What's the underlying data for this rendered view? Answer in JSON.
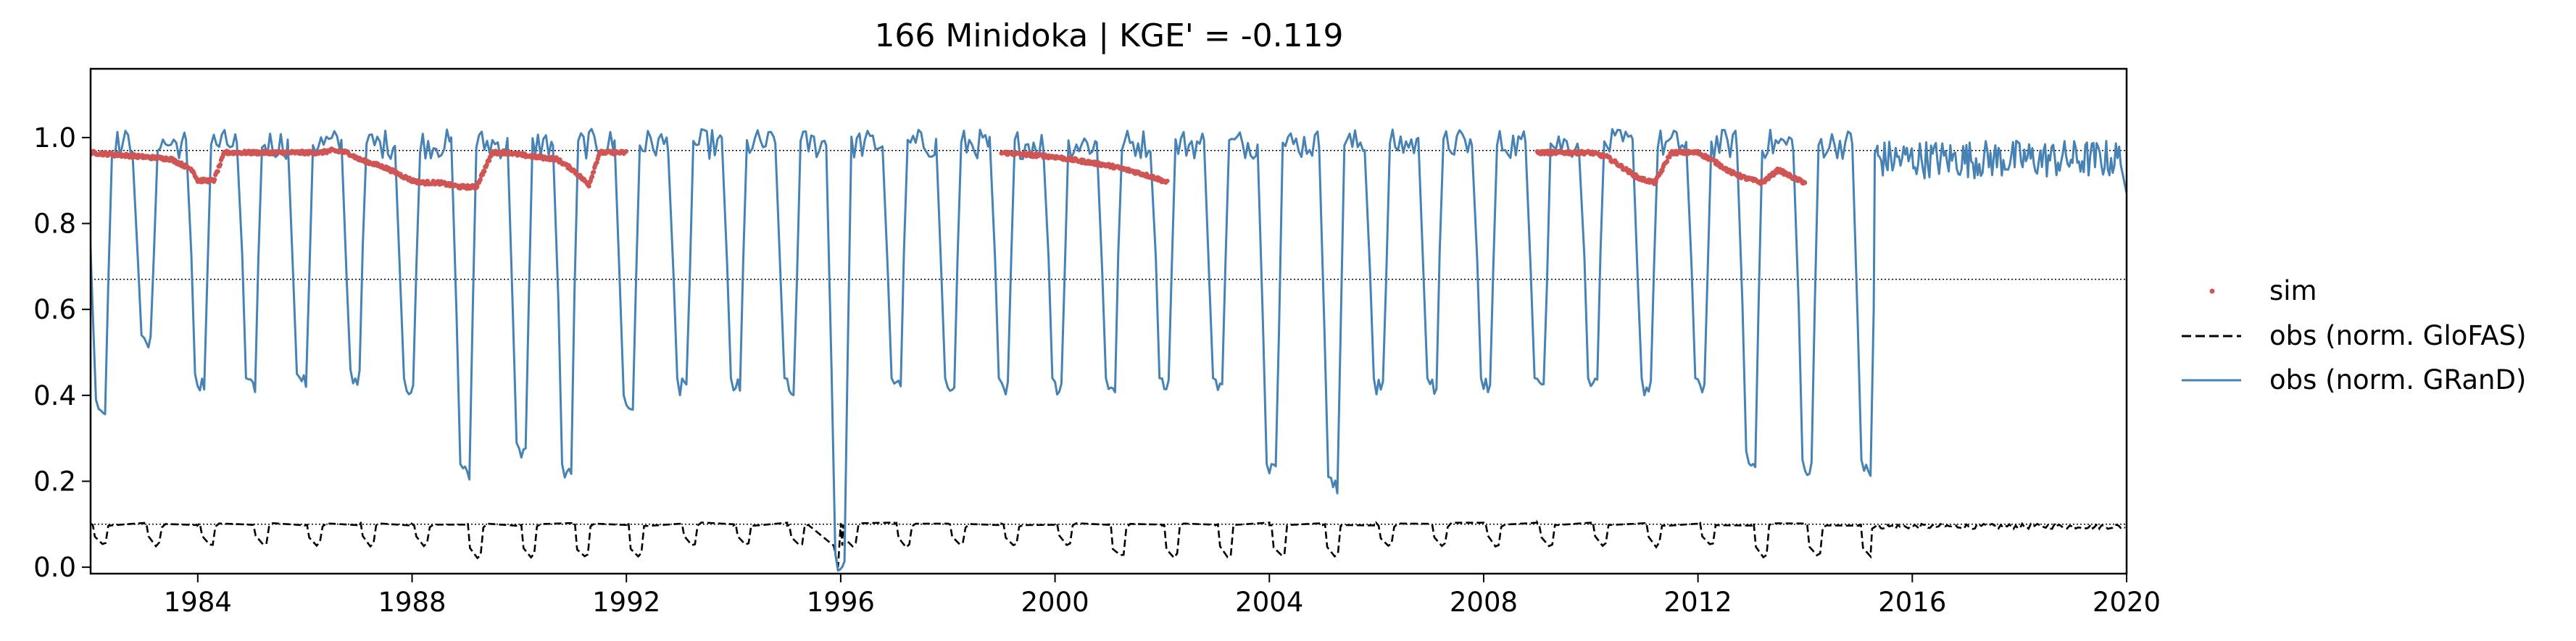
{
  "chart_data": {
    "type": "line",
    "title": "166  Minidoka | KGE' = -0.119",
    "xlabel": "",
    "ylabel": "",
    "xlim": [
      1982.0,
      2020.0
    ],
    "ylim": [
      -0.015,
      1.16
    ],
    "xticks": [
      1984,
      1988,
      1992,
      1996,
      2000,
      2004,
      2008,
      2012,
      2016,
      2020
    ],
    "yticks": [
      0.0,
      0.2,
      0.4,
      0.6,
      0.8,
      1.0
    ],
    "ytick_labels": [
      "0.0",
      "0.2",
      "0.4",
      "0.6",
      "0.8",
      "1.0"
    ],
    "grid": false,
    "reference_lines": [
      0.97,
      0.67,
      0.1
    ],
    "legend_position": "right, outside plot",
    "series": [
      {
        "name": "sim",
        "style": "points",
        "color": "#d05555",
        "segments": [
          {
            "x": [
              1982.0,
              1982.5,
              1983.0,
              1983.5,
              1983.9,
              1984.0,
              1984.3,
              1984.5,
              1985.0,
              1985.5,
              1986.0,
              1986.3,
              1986.5,
              1986.8,
              1987.0,
              1987.5,
              1988.0,
              1988.2,
              1988.5,
              1988.9,
              1989.2,
              1989.5,
              1989.8,
              1990.0,
              1990.3,
              1990.7,
              1991.0,
              1991.3,
              1991.5,
              1991.8,
              1992.0
            ],
            "y": [
              0.965,
              0.96,
              0.955,
              0.95,
              0.925,
              0.9,
              0.9,
              0.965,
              0.965,
              0.965,
              0.965,
              0.965,
              0.97,
              0.965,
              0.95,
              0.93,
              0.9,
              0.895,
              0.895,
              0.885,
              0.885,
              0.965,
              0.965,
              0.96,
              0.955,
              0.95,
              0.925,
              0.89,
              0.965,
              0.965,
              0.965
            ]
          },
          {
            "x": [
              1999.0,
              1999.5,
              2000.0,
              2000.5,
              2001.0,
              2001.5,
              2001.9,
              2002.1
            ],
            "y": [
              0.965,
              0.96,
              0.955,
              0.945,
              0.935,
              0.92,
              0.905,
              0.895
            ]
          },
          {
            "x": [
              2009.0,
              2009.5,
              2010.0,
              2010.3,
              2010.6,
              2010.9,
              2011.2,
              2011.5,
              2011.8,
              2012.0,
              2012.3,
              2012.6,
              2012.9,
              2013.2,
              2013.5,
              2013.8,
              2014.0
            ],
            "y": [
              0.965,
              0.965,
              0.965,
              0.955,
              0.93,
              0.905,
              0.895,
              0.965,
              0.965,
              0.965,
              0.945,
              0.92,
              0.905,
              0.895,
              0.925,
              0.905,
              0.895
            ]
          }
        ]
      },
      {
        "name": "obs (norm. GloFAS)",
        "style": "dashed",
        "color": "#000000",
        "seasonal": {
          "start": 1982.0,
          "end": 2015.25,
          "high": 0.1,
          "low": 0.05,
          "deep_years": [
            1989,
            1990,
            1991,
            1992,
            2001,
            2002,
            2003,
            2004,
            2005,
            2013,
            2014,
            2015
          ],
          "deep_low": 0.025,
          "minimum": {
            "x": 1995.95,
            "y": 0.0
          }
        },
        "after": {
          "start": 2015.25,
          "end": 2020.0,
          "level": 0.095
        }
      },
      {
        "name": "obs (norm. GRanD)",
        "style": "solid",
        "color": "#4682b4",
        "troughs": [
          [
            1982.15,
            0.35
          ],
          [
            1983.0,
            0.5
          ],
          [
            1984.0,
            0.41
          ],
          [
            1984.95,
            0.4
          ],
          [
            1985.9,
            0.41
          ],
          [
            1986.9,
            0.42
          ],
          [
            1987.9,
            0.4
          ],
          [
            1988.95,
            0.2
          ],
          [
            1990.0,
            0.25
          ],
          [
            1990.85,
            0.2
          ],
          [
            1992.0,
            0.36
          ],
          [
            1993.0,
            0.4
          ],
          [
            1994.0,
            0.4
          ],
          [
            1995.0,
            0.4
          ],
          [
            1995.95,
            -0.01
          ],
          [
            1997.0,
            0.4
          ],
          [
            1998.0,
            0.4
          ],
          [
            1999.0,
            0.4
          ],
          [
            2000.0,
            0.4
          ],
          [
            2001.0,
            0.4
          ],
          [
            2002.0,
            0.4
          ],
          [
            2003.0,
            0.4
          ],
          [
            2004.0,
            0.2
          ],
          [
            2005.15,
            0.17
          ],
          [
            2006.0,
            0.4
          ],
          [
            2007.0,
            0.4
          ],
          [
            2008.0,
            0.4
          ],
          [
            2009.0,
            0.4
          ],
          [
            2010.0,
            0.4
          ],
          [
            2011.0,
            0.4
          ],
          [
            2012.0,
            0.4
          ],
          [
            2012.95,
            0.23
          ],
          [
            2014.0,
            0.21
          ],
          [
            2015.1,
            0.21
          ]
        ],
        "peak_level": 0.985,
        "after": {
          "start": 2015.3,
          "end": 2020.0,
          "level": 0.95,
          "final": 0.87
        }
      }
    ]
  }
}
